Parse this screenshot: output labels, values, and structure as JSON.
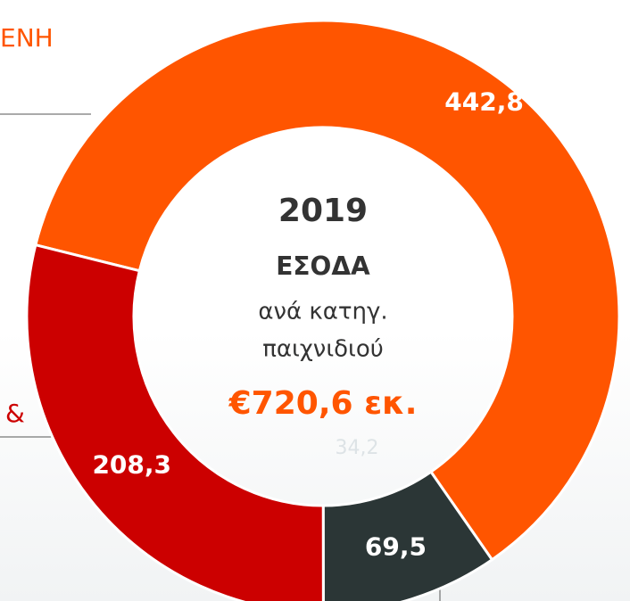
{
  "chart_data": {
    "type": "donut",
    "categories": [
      null,
      null,
      null
    ],
    "values": [
      442.8,
      69.5,
      208.3
    ],
    "value_labels": [
      "442,8",
      "69,5",
      "208,3"
    ],
    "colors": [
      "#ff5500",
      "#2b3636",
      "#cc0000"
    ],
    "center_year": "2019",
    "center_title": "ΕΣΟΔΑ",
    "center_line1": "ανά κατηγ.",
    "center_line2": "παιχνιδιού",
    "center_total": "€720,6 εκ.",
    "faint_label": "34,2",
    "edge_text_top": "ΕΝΗ",
    "edge_text_left": "&"
  }
}
